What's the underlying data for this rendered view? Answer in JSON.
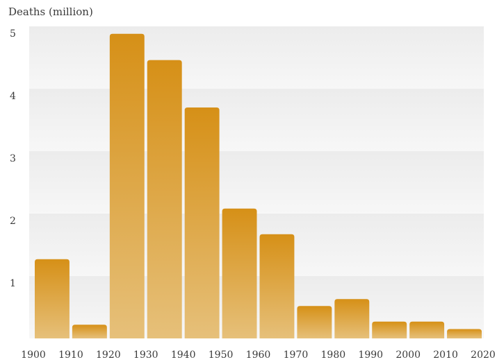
{
  "chart_data": {
    "type": "bar",
    "ylabel": "Deaths (million)",
    "ylim": [
      0,
      5
    ],
    "yticks": [
      "1",
      "2",
      "3",
      "4",
      "5"
    ],
    "xticks": [
      "1900",
      "1910",
      "1920",
      "1930",
      "1940",
      "1950",
      "1960",
      "1970",
      "1980",
      "1990",
      "2000",
      "2010",
      "2020"
    ],
    "bins": [
      {
        "start": 1900,
        "end": 1910,
        "value": 1.27
      },
      {
        "start": 1910,
        "end": 1920,
        "value": 0.22
      },
      {
        "start": 1920,
        "end": 1930,
        "value": 4.88
      },
      {
        "start": 1930,
        "end": 1940,
        "value": 4.46
      },
      {
        "start": 1940,
        "end": 1950,
        "value": 3.7
      },
      {
        "start": 1950,
        "end": 1960,
        "value": 2.08
      },
      {
        "start": 1960,
        "end": 1970,
        "value": 1.67
      },
      {
        "start": 1970,
        "end": 1980,
        "value": 0.52
      },
      {
        "start": 1980,
        "end": 1990,
        "value": 0.63
      },
      {
        "start": 1990,
        "end": 2000,
        "value": 0.27
      },
      {
        "start": 2000,
        "end": 2010,
        "value": 0.27
      },
      {
        "start": 2010,
        "end": 2020,
        "value": 0.15
      }
    ],
    "grid": "horizontal bands",
    "legend": "none",
    "colors": {
      "bar_top": "#d69017",
      "bar_bottom": "#e6c07a",
      "band_dark": "#ececec",
      "band_light": "#f7f7f7",
      "text": "#3a3a3a"
    }
  }
}
